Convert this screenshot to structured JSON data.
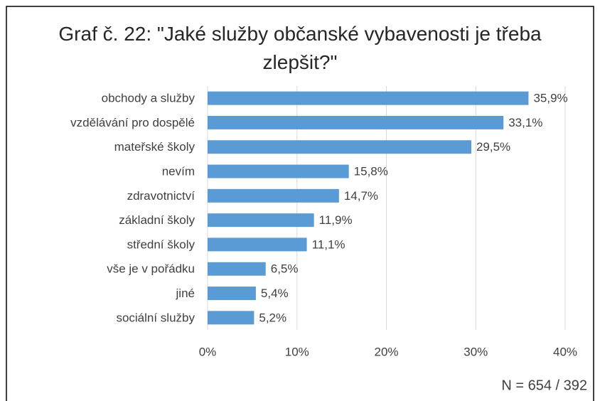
{
  "chart_data": {
    "type": "barh",
    "title": "Graf č. 22: \"Jaké služby občanské vybavenosti je třeba zlepšit?\"",
    "categories": [
      "obchody a služby",
      "vzdělávání pro dospělé",
      "mateřské školy",
      "nevím",
      "zdravotnictví",
      "základní školy",
      "střední školy",
      "vše je v pořádku",
      "jiné",
      "sociální služby"
    ],
    "values": [
      35.9,
      33.1,
      29.5,
      15.8,
      14.7,
      11.9,
      11.1,
      6.5,
      5.4,
      5.2
    ],
    "value_labels": [
      "35,9%",
      "33,1%",
      "29,5%",
      "15,8%",
      "14,7%",
      "11,9%",
      "11,1%",
      "6,5%",
      "5,4%",
      "5,2%"
    ],
    "color": "#5b9bd5",
    "xlim": [
      0,
      40
    ],
    "xticks": [
      {
        "value": 0,
        "label": "0%"
      },
      {
        "value": 10,
        "label": "10%"
      },
      {
        "value": 20,
        "label": "20%"
      },
      {
        "value": 30,
        "label": "30%"
      },
      {
        "value": 40,
        "label": "40%"
      }
    ],
    "grid": true,
    "annotation": "N = 654 / 392"
  }
}
